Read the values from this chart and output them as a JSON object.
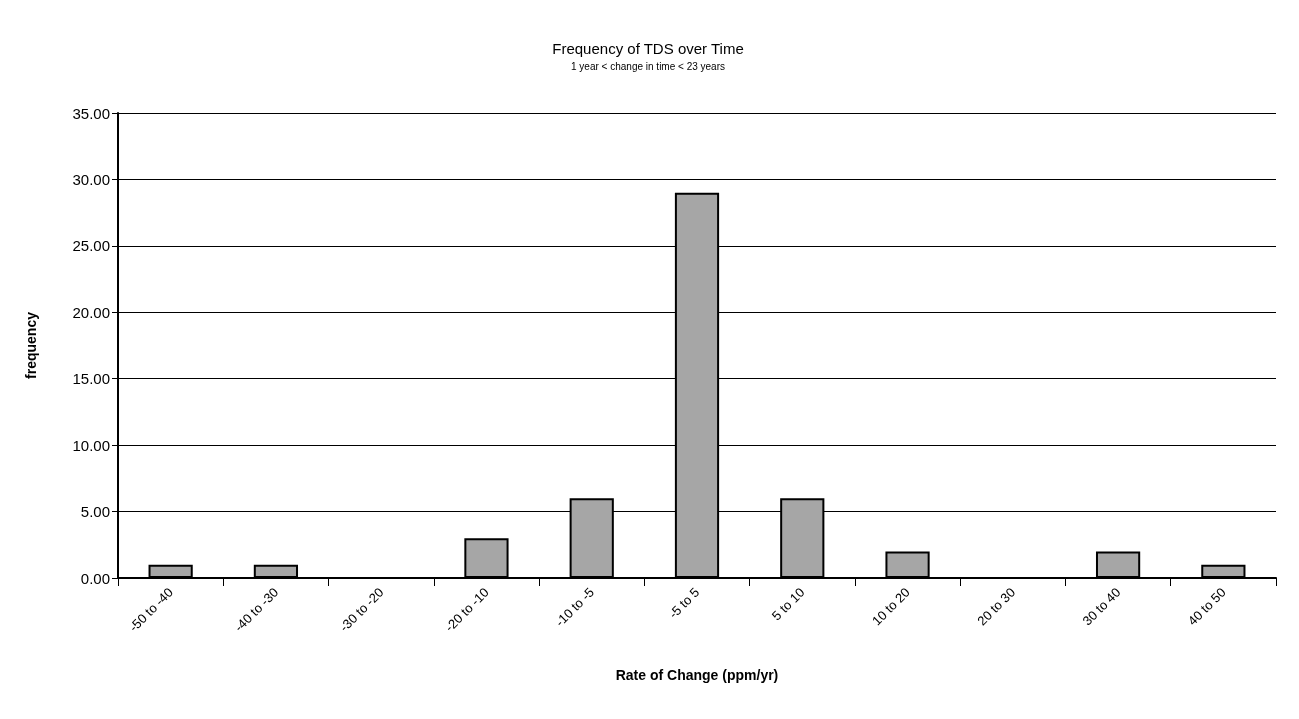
{
  "chart_data": {
    "type": "bar",
    "title": "Frequency of TDS over Time",
    "subtitle": "1 year < change in time < 23 years",
    "xlabel": "Rate of Change (ppm/yr)",
    "ylabel": "frequency",
    "categories": [
      "-50 to -40",
      "-40 to -30",
      "-30 to -20",
      "-20 to -10",
      "-10 to -5",
      "-5 to 5",
      "5 to 10",
      "10 to 20",
      "20 to 30",
      "30 to 40",
      "40 to 50"
    ],
    "values": [
      1,
      1,
      0,
      3,
      6,
      29,
      6,
      2,
      0,
      2,
      1
    ],
    "color": "#a6a6a6",
    "ylim": [
      0,
      35
    ],
    "yticks": [
      {
        "value": 0,
        "label": "0.00"
      },
      {
        "value": 5,
        "label": "5.00"
      },
      {
        "value": 10,
        "label": "10.00"
      },
      {
        "value": 15,
        "label": "15.00"
      },
      {
        "value": 20,
        "label": "20.00"
      },
      {
        "value": 25,
        "label": "25.00"
      },
      {
        "value": 30,
        "label": "30.00"
      },
      {
        "value": 35,
        "label": "35.00"
      }
    ],
    "grid": "y"
  }
}
